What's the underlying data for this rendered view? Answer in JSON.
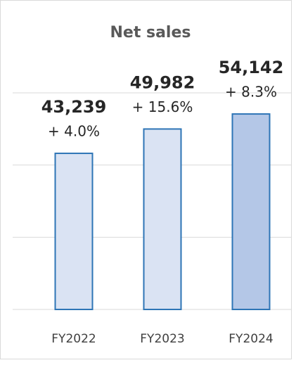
{
  "chart_data": {
    "type": "bar",
    "title": "Net sales",
    "categories": [
      "FY2022",
      "FY2023",
      "FY2024"
    ],
    "values": [
      43239,
      49982,
      54142
    ],
    "value_labels": [
      "43,239",
      "49,982",
      "54,142"
    ],
    "annotations": [
      "+ 4.0%",
      "+ 15.6%",
      "+ 8.3%"
    ],
    "colors": [
      "#dae3f3",
      "#dae3f3",
      "#b4c7e7"
    ],
    "edge_color": "#2e75b6",
    "ylim": [
      0,
      60000
    ],
    "yticks": [
      0,
      20000,
      40000,
      60000
    ],
    "grid": true
  }
}
